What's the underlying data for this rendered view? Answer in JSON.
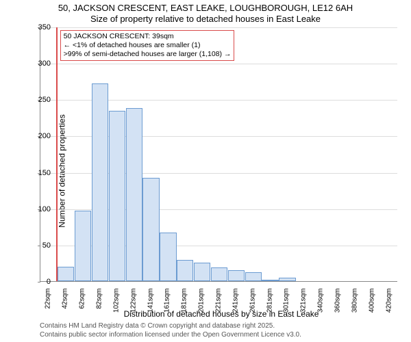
{
  "title_line1": "50, JACKSON CRESCENT, EAST LEAKE, LOUGHBOROUGH, LE12 6AH",
  "title_line2": "Size of property relative to detached houses in East Leake",
  "ylabel": "Number of detached properties",
  "xlabel": "Distribution of detached houses by size in East Leake",
  "footer_line1": "Contains HM Land Registry data © Crown copyright and database right 2025.",
  "footer_line2": "Contains public sector information licensed under the Open Government Licence v3.0.",
  "chart": {
    "type": "histogram",
    "background_color": "#ffffff",
    "grid_color": "#dddddd",
    "axis_color": "#888888",
    "bar_fill": "#d3e2f4",
    "bar_border": "#6b9bd1",
    "marker_color": "#d94a4a",
    "callout_border": "#d94a4a",
    "ylim": [
      0,
      350
    ],
    "ytick_step": 50,
    "xticks": [
      "22sqm",
      "42sqm",
      "62sqm",
      "82sqm",
      "102sqm",
      "122sqm",
      "141sqm",
      "161sqm",
      "181sqm",
      "201sqm",
      "221sqm",
      "241sqm",
      "261sqm",
      "281sqm",
      "301sqm",
      "321sqm",
      "340sqm",
      "360sqm",
      "380sqm",
      "400sqm",
      "420sqm"
    ],
    "categories": [
      "22",
      "42",
      "62",
      "82",
      "102",
      "122",
      "141",
      "161",
      "181",
      "201",
      "221",
      "241",
      "261",
      "281",
      "301",
      "321",
      "340",
      "360",
      "380",
      "400",
      "420"
    ],
    "values": [
      0,
      20,
      97,
      272,
      234,
      238,
      142,
      67,
      29,
      25,
      19,
      15,
      12,
      2,
      5,
      0,
      0,
      0,
      0,
      0,
      0
    ],
    "marker_bin_index": 0,
    "marker_fraction_in_bin": 0.91,
    "callout": {
      "line1": "50 JACKSON CRESCENT: 39sqm",
      "line2": "← <1% of detached houses are smaller (1)",
      "line3": ">99% of semi-detached houses are larger (1,108) →"
    },
    "label_fontsize": 12,
    "tick_fontsize": 11,
    "xtick_fontsize": 10,
    "title_fontsize": 13
  }
}
